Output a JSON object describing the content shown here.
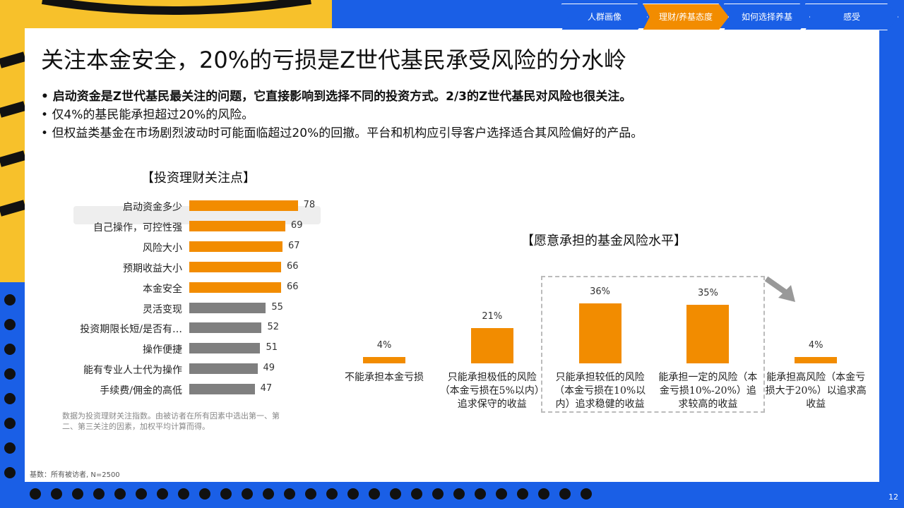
{
  "nav": [
    "人群画像",
    "理财/养基态度",
    "如何选择养基",
    "感受"
  ],
  "title": "关注本金安全，20%的亏损是Z世代基民承受风险的分水岭",
  "bullets": [
    "启动资金是Z世代基民最关注的问题，它直接影响到选择不同的投资方式。2/3的Z世代基民对风险也很关注。",
    "仅4%的基民能承担超过20%的风险。",
    "但权益类基金在市场剧烈波动时可能面临超过20%的回撤。平台和机构应引导客户选择适合其风险偏好的产品。"
  ],
  "note": "数据为投资理财关注指数。由被访者在所有因素中选出第一、第二、第三关注的因素，加权平均计算而得。",
  "base": "基数：所有被访者, N=2500",
  "page": "12",
  "chart_data": [
    {
      "type": "hbar",
      "title": "【投资理财关注点】",
      "categories": [
        "启动资金多少",
        "自己操作，可控性强",
        "风险大小",
        "预期收益大小",
        "本金安全",
        "灵活变现",
        "投资期限长短/是否有…",
        "操作便捷",
        "能有专业人士代为操作",
        "手续费/佣金的高低"
      ],
      "values": [
        78,
        69,
        67,
        66,
        66,
        55,
        52,
        51,
        49,
        47
      ],
      "colors": [
        "#f28c00",
        "#f28c00",
        "#f28c00",
        "#f28c00",
        "#f28c00",
        "#7f7f7f",
        "#7f7f7f",
        "#7f7f7f",
        "#7f7f7f",
        "#7f7f7f"
      ]
    },
    {
      "type": "bar",
      "title": "【愿意承担的基金风险水平】",
      "categories": [
        "不能承担本金亏损",
        "只能承担极低的风险（本金亏损在5%以内）追求保守的收益",
        "只能承担较低的风险（本金亏损在10%以内）追求稳健的收益",
        "能承担一定的风险（本金亏损10%-20%）追求较高的收益",
        "能承担高风险（本金亏损大于20%）以追求高收益"
      ],
      "values": [
        4,
        21,
        36,
        35,
        4
      ],
      "value_labels": [
        "4%",
        "21%",
        "36%",
        "35%",
        "4%"
      ],
      "color": "#f28c00"
    }
  ]
}
